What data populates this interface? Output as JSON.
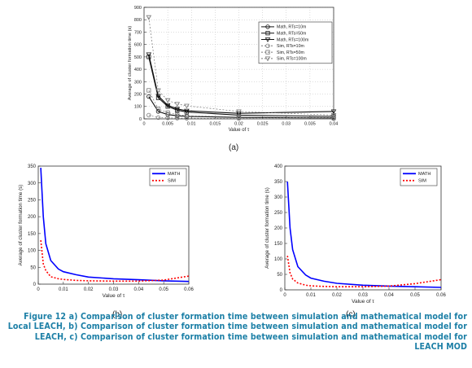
{
  "figure": {
    "caption": "Figure 12 a) Comparison of cluster formation time between simulation and mathematical model for Local LEACH, b) Comparison of cluster formation time between simulation and mathematical model for LEACH, c) Comparison of cluster formation time between simulation and mathematical model for LEACH MOD",
    "panel_labels": [
      "(a)",
      "(b)",
      "(c)"
    ]
  },
  "chart_data": [
    {
      "type": "line",
      "panel": "(a)",
      "xlabel": "Value of τ",
      "ylabel": "Average of cluster formation time (s)",
      "xlim": [
        0,
        0.04
      ],
      "ylim": [
        0,
        900
      ],
      "xticks": [
        "0",
        "0.005",
        "0.01",
        "0.015",
        "0.02",
        "0.025",
        "0.03",
        "0.035",
        "0.04"
      ],
      "yticks": [
        "0",
        "100",
        "200",
        "300",
        "400",
        "500",
        "600",
        "700",
        "800",
        "900"
      ],
      "legend_position": "top-right",
      "x": [
        0.001,
        0.003,
        0.005,
        0.007,
        0.009,
        0.02,
        0.04
      ],
      "series": [
        {
          "name": "Math, RTs=10m",
          "style": "math",
          "marker": "circle",
          "values": [
            180,
            60,
            35,
            25,
            20,
            12,
            8
          ]
        },
        {
          "name": "Math, RTs=50m",
          "style": "math",
          "marker": "square",
          "values": [
            500,
            170,
            100,
            70,
            55,
            30,
            20
          ]
        },
        {
          "name": "Math, RTs=100m",
          "style": "math",
          "marker": "triangle",
          "values": [
            520,
            185,
            110,
            80,
            65,
            45,
            60
          ]
        },
        {
          "name": "Sim, RTs=10m",
          "style": "sim",
          "marker": "circle",
          "values": [
            30,
            10,
            8,
            6,
            5,
            3,
            2
          ]
        },
        {
          "name": "Sim, RTs=50m",
          "style": "sim",
          "marker": "square",
          "values": [
            230,
            80,
            50,
            35,
            25,
            15,
            8
          ]
        },
        {
          "name": "Sim, RTs=100m",
          "style": "sim",
          "marker": "triangle",
          "values": [
            820,
            230,
            150,
            120,
            105,
            60,
            30
          ]
        }
      ]
    },
    {
      "type": "line",
      "panel": "(b)",
      "xlabel": "Value of τ",
      "ylabel": "Average of cluster formation time (s)",
      "xlim": [
        0,
        0.06
      ],
      "ylim": [
        0,
        350
      ],
      "xticks": [
        "0",
        "0.01",
        "0.02",
        "0.03",
        "0.04",
        "0.05",
        "0.06"
      ],
      "yticks": [
        "0",
        "50",
        "100",
        "150",
        "200",
        "250",
        "300",
        "350"
      ],
      "legend_position": "top-right",
      "x": [
        0.001,
        0.002,
        0.003,
        0.005,
        0.008,
        0.01,
        0.015,
        0.02,
        0.03,
        0.04,
        0.05,
        0.06
      ],
      "series": [
        {
          "name": "MATH",
          "color": "#0000ff",
          "dash": "solid",
          "values": [
            345,
            200,
            120,
            70,
            45,
            37,
            28,
            21,
            16,
            13,
            10,
            8
          ]
        },
        {
          "name": "SIM",
          "color": "#ff0000",
          "dash": "dotted",
          "values": [
            130,
            60,
            40,
            22,
            16,
            14,
            11,
            10,
            9,
            9,
            12,
            24
          ]
        }
      ]
    },
    {
      "type": "line",
      "panel": "(c)",
      "xlabel": "Value of τ",
      "ylabel": "Average of cluster formation time (s)",
      "xlim": [
        0,
        0.06
      ],
      "ylim": [
        0,
        400
      ],
      "xticks": [
        "0",
        "0.01",
        "0.02",
        "0.03",
        "0.04",
        "0.05",
        "0.06"
      ],
      "yticks": [
        "0",
        "50",
        "100",
        "150",
        "200",
        "250",
        "300",
        "350",
        "400"
      ],
      "legend_position": "top-right",
      "x": [
        0.001,
        0.002,
        0.003,
        0.005,
        0.008,
        0.01,
        0.015,
        0.02,
        0.03,
        0.04,
        0.05,
        0.06
      ],
      "series": [
        {
          "name": "MATH",
          "color": "#0000ff",
          "dash": "solid",
          "values": [
            350,
            200,
            130,
            75,
            48,
            38,
            28,
            21,
            15,
            12,
            10,
            8
          ]
        },
        {
          "name": "SIM",
          "color": "#ff0000",
          "dash": "dotted",
          "values": [
            110,
            55,
            35,
            22,
            15,
            13,
            11,
            10,
            10,
            12,
            20,
            33
          ]
        }
      ]
    }
  ]
}
